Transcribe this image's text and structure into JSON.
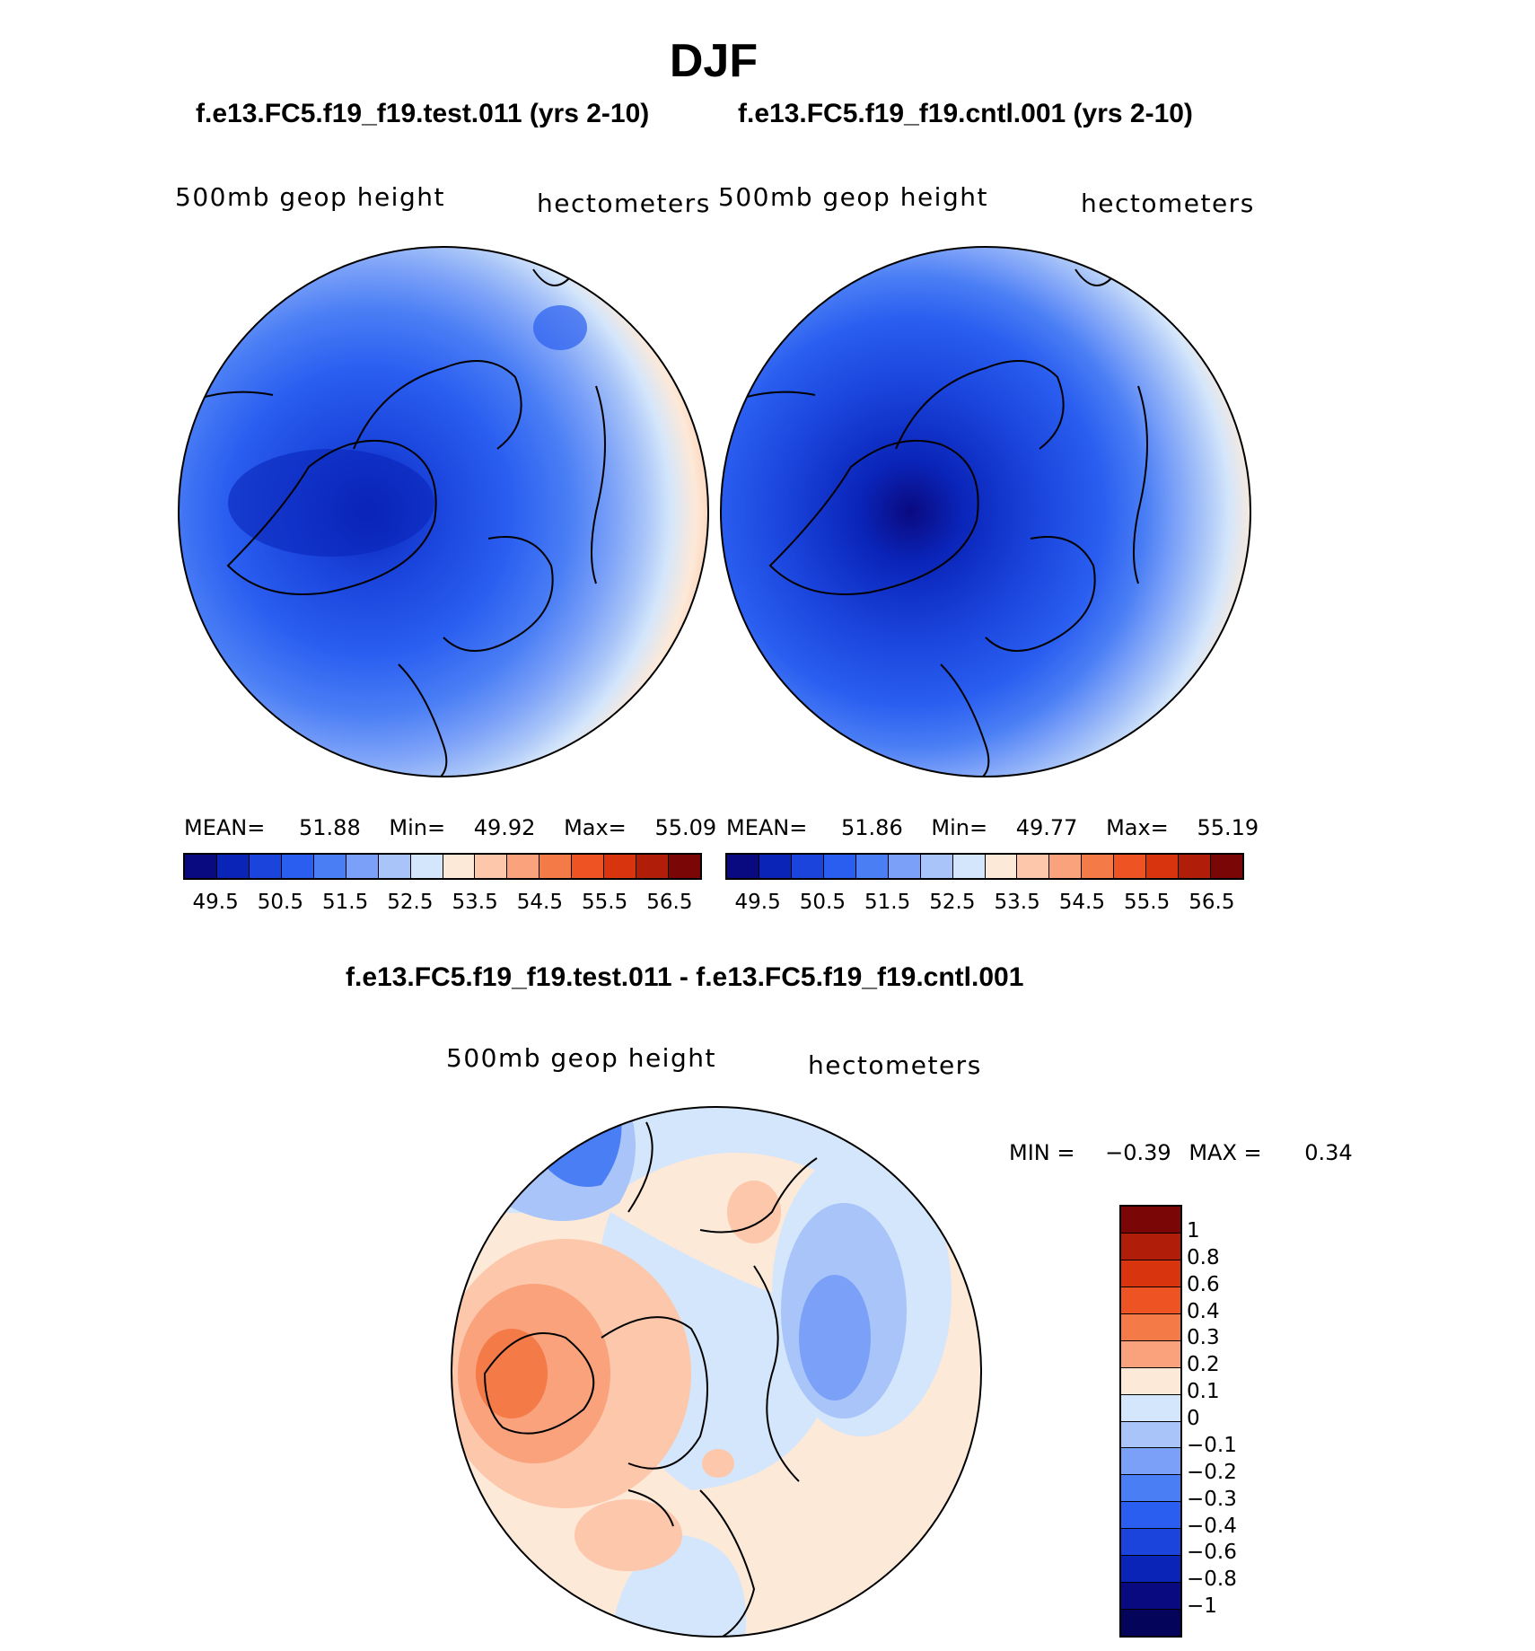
{
  "season": "DJF",
  "panels": {
    "test": {
      "title": "f.e13.FC5.f19_f19.test.011 (yrs 2-10)",
      "variable": "500mb geop height",
      "units": "hectometers",
      "stats": {
        "mean_label": "MEAN=",
        "mean": "51.88",
        "min_label": "Min=",
        "min": "49.92",
        "max_label": "Max=",
        "max": "55.09"
      }
    },
    "cntl": {
      "title": "f.e13.FC5.f19_f19.cntl.001 (yrs 2-10)",
      "variable": "500mb geop height",
      "units": "hectometers",
      "stats": {
        "mean_label": "MEAN=",
        "mean": "51.86",
        "min_label": "Min=",
        "min": "49.77",
        "max_label": "Max=",
        "max": "55.19"
      }
    },
    "diff": {
      "title": "f.e13.FC5.f19_f19.test.011 - f.e13.FC5.f19_f19.cntl.001",
      "variable": "500mb geop height",
      "units": "hectometers",
      "stats": {
        "min_label": "MIN =",
        "min": "−0.39",
        "max_label": "MAX =",
        "max": "0.34"
      }
    }
  },
  "colorbar_main": {
    "colors": [
      "#0a0a80",
      "#0a24b8",
      "#1a44dc",
      "#2a5ef0",
      "#4a7ef5",
      "#7aa0f8",
      "#a8c4f8",
      "#d4e6fb",
      "#fde9d8",
      "#fcc7aa",
      "#f9a27c",
      "#f47a48",
      "#ee5324",
      "#d8340e",
      "#b01e0a",
      "#7a0606"
    ],
    "ticks": [
      "49.5",
      "50.5",
      "51.5",
      "52.5",
      "53.5",
      "54.5",
      "55.5",
      "56.5"
    ]
  },
  "colorbar_diff": {
    "colors": [
      "#7a0606",
      "#b01e0a",
      "#d8340e",
      "#ee5324",
      "#f47a48",
      "#f9a27c",
      "#fde9d8",
      "#d4e6fb",
      "#a8c4f8",
      "#7aa0f8",
      "#4a7ef5",
      "#2a5ef0",
      "#1a44dc",
      "#0a24b8",
      "#0a0a80",
      "#04045a"
    ],
    "ticks": [
      "1",
      "0.8",
      "0.6",
      "0.4",
      "0.3",
      "0.2",
      "0.1",
      "0",
      "−0.1",
      "−0.2",
      "−0.3",
      "−0.4",
      "−0.6",
      "−0.8",
      "−1"
    ]
  },
  "colors": {
    "ocean_blue": "#1e50e6",
    "deep_blue": "#0a24b8",
    "warm": "#f47a48",
    "pale_warm": "#fde9d8",
    "pale_blue": "#d4e6fb"
  }
}
